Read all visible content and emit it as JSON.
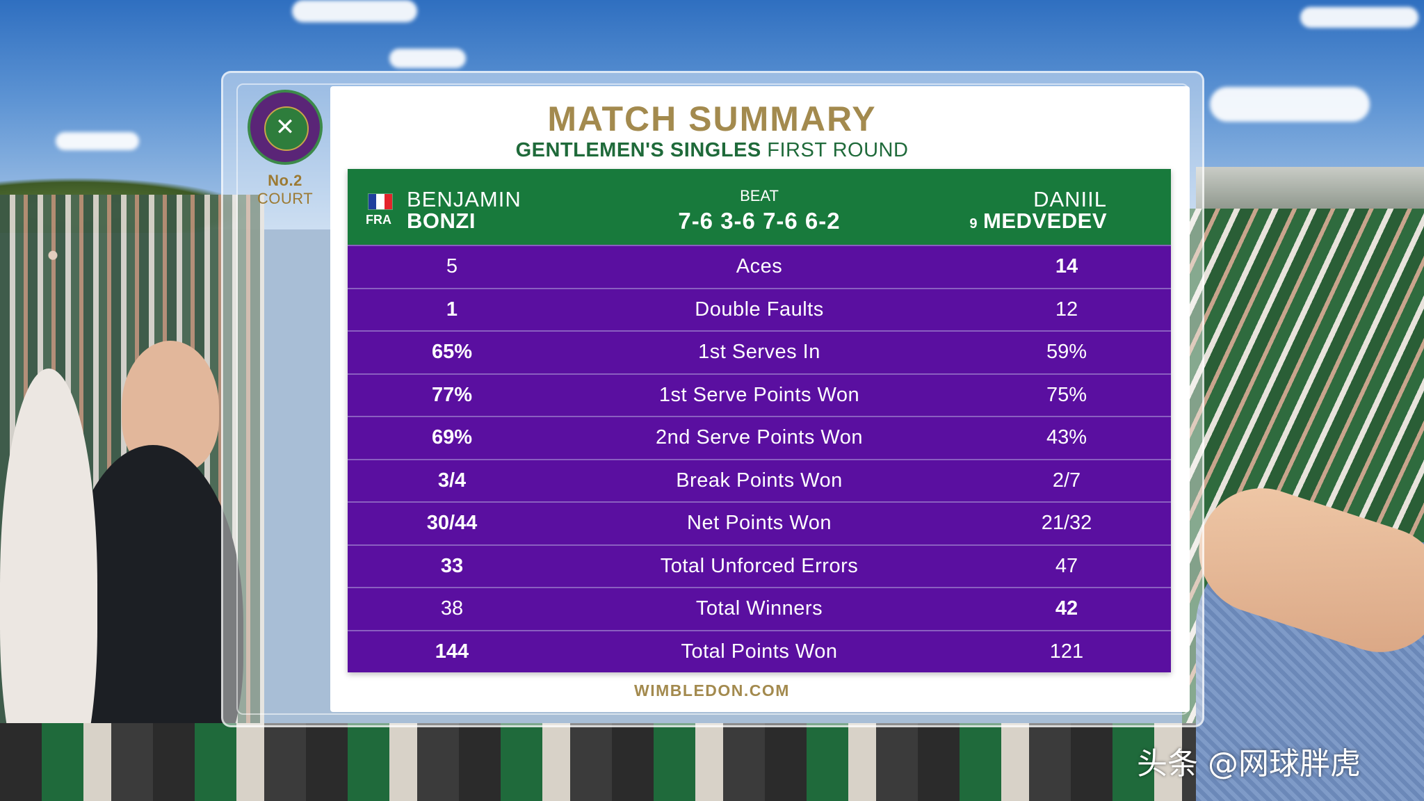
{
  "logo": {
    "org": "THE CHAMPIONSHIPS WIMBLEDON",
    "court_number": "No.2",
    "court_label": "COURT"
  },
  "header": {
    "title": "MATCH SUMMARY",
    "event_bold": "GENTLEMEN'S SINGLES",
    "event_round": "FIRST ROUND"
  },
  "match": {
    "player1": {
      "first": "BENJAMIN",
      "last": "BONZI",
      "country": "FRA"
    },
    "player2": {
      "first": "DANIIL",
      "last": "MEDVEDEV",
      "seed": "9"
    },
    "result_word": "BEAT",
    "score": "7-6 3-6 7-6 6-2"
  },
  "stats": [
    {
      "label": "Aces",
      "p1": "5",
      "p2": "14",
      "p1_bold": false,
      "p2_bold": true
    },
    {
      "label": "Double Faults",
      "p1": "1",
      "p2": "12",
      "p1_bold": true,
      "p2_bold": false
    },
    {
      "label": "1st Serves In",
      "p1": "65%",
      "p2": "59%",
      "p1_bold": true,
      "p2_bold": false
    },
    {
      "label": "1st Serve Points Won",
      "p1": "77%",
      "p2": "75%",
      "p1_bold": true,
      "p2_bold": false
    },
    {
      "label": "2nd Serve Points Won",
      "p1": "69%",
      "p2": "43%",
      "p1_bold": true,
      "p2_bold": false
    },
    {
      "label": "Break Points Won",
      "p1": "3/4",
      "p2": "2/7",
      "p1_bold": true,
      "p2_bold": false
    },
    {
      "label": "Net Points Won",
      "p1": "30/44",
      "p2": "21/32",
      "p1_bold": true,
      "p2_bold": false
    },
    {
      "label": "Total Unforced Errors",
      "p1": "33",
      "p2": "47",
      "p1_bold": true,
      "p2_bold": false
    },
    {
      "label": "Total Winners",
      "p1": "38",
      "p2": "42",
      "p1_bold": false,
      "p2_bold": true
    },
    {
      "label": "Total Points Won",
      "p1": "144",
      "p2": "121",
      "p1_bold": true,
      "p2_bold": false
    }
  ],
  "footer": {
    "site": "WIMBLEDON.COM"
  },
  "watermark": {
    "text": "头条 @网球胖虎"
  },
  "colors": {
    "gold": "#a38a4e",
    "green": "#187a3c",
    "purple": "#5a0fa0",
    "flag": [
      "#1f3f9c",
      "#ffffff",
      "#e3242b"
    ]
  }
}
